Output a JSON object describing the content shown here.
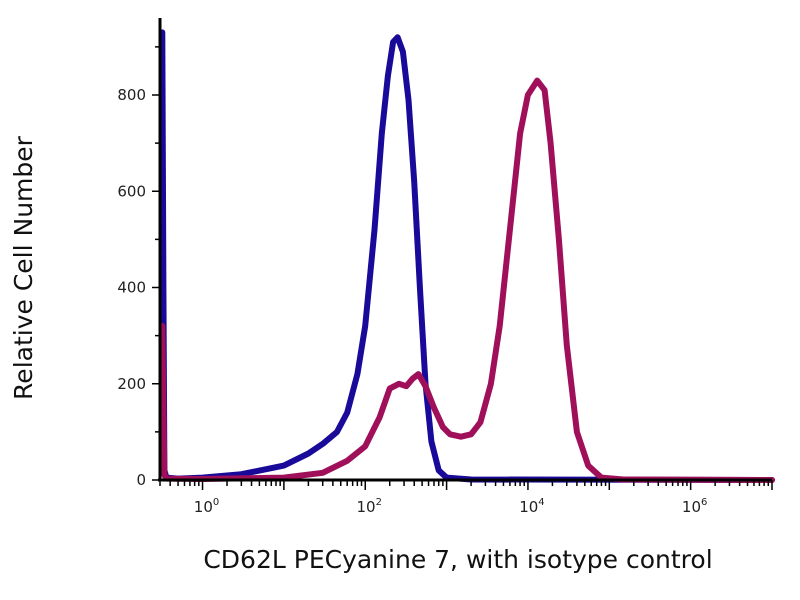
{
  "chart_data": {
    "type": "line",
    "xlabel": "CD62L PECyanine 7, with isotype control",
    "ylabel": "Relative Cell Number",
    "x_scale": "log",
    "xlim": [
      0.3,
      10000000
    ],
    "ylim": [
      0,
      960
    ],
    "x_ticks": [
      {
        "value": 1,
        "base": "10",
        "exp": "0"
      },
      {
        "value": 100,
        "base": "10",
        "exp": "2"
      },
      {
        "value": 10000,
        "base": "10",
        "exp": "4"
      },
      {
        "value": 1000000,
        "base": "10",
        "exp": "6"
      }
    ],
    "y_ticks": [
      0,
      200,
      400,
      600,
      800
    ],
    "grid": false,
    "series": [
      {
        "color": "#1a0a9a",
        "points": [
          [
            0.32,
            930
          ],
          [
            0.33,
            400
          ],
          [
            0.34,
            20
          ],
          [
            0.36,
            5
          ],
          [
            0.5,
            3
          ],
          [
            1,
            5
          ],
          [
            3,
            12
          ],
          [
            10,
            30
          ],
          [
            20,
            55
          ],
          [
            30,
            75
          ],
          [
            45,
            100
          ],
          [
            60,
            140
          ],
          [
            80,
            220
          ],
          [
            100,
            320
          ],
          [
            130,
            520
          ],
          [
            160,
            720
          ],
          [
            190,
            840
          ],
          [
            220,
            910
          ],
          [
            250,
            920
          ],
          [
            290,
            890
          ],
          [
            340,
            790
          ],
          [
            400,
            620
          ],
          [
            470,
            400
          ],
          [
            550,
            200
          ],
          [
            650,
            80
          ],
          [
            800,
            20
          ],
          [
            1000,
            5
          ],
          [
            2000,
            1
          ],
          [
            10000000,
            0
          ]
        ]
      },
      {
        "color": "#a0105a",
        "points": [
          [
            0.32,
            320
          ],
          [
            0.33,
            150
          ],
          [
            0.34,
            10
          ],
          [
            0.36,
            3
          ],
          [
            1,
            2
          ],
          [
            10,
            5
          ],
          [
            30,
            15
          ],
          [
            60,
            40
          ],
          [
            100,
            70
          ],
          [
            150,
            130
          ],
          [
            200,
            190
          ],
          [
            260,
            200
          ],
          [
            320,
            195
          ],
          [
            380,
            210
          ],
          [
            450,
            220
          ],
          [
            550,
            195
          ],
          [
            700,
            150
          ],
          [
            900,
            110
          ],
          [
            1100,
            95
          ],
          [
            1500,
            90
          ],
          [
            2000,
            95
          ],
          [
            2600,
            120
          ],
          [
            3500,
            200
          ],
          [
            4500,
            320
          ],
          [
            6000,
            520
          ],
          [
            8000,
            720
          ],
          [
            10000,
            800
          ],
          [
            13000,
            830
          ],
          [
            16000,
            810
          ],
          [
            19000,
            700
          ],
          [
            24000,
            500
          ],
          [
            30000,
            280
          ],
          [
            40000,
            100
          ],
          [
            55000,
            30
          ],
          [
            80000,
            5
          ],
          [
            150000,
            1
          ],
          [
            10000000,
            0
          ]
        ]
      }
    ]
  }
}
